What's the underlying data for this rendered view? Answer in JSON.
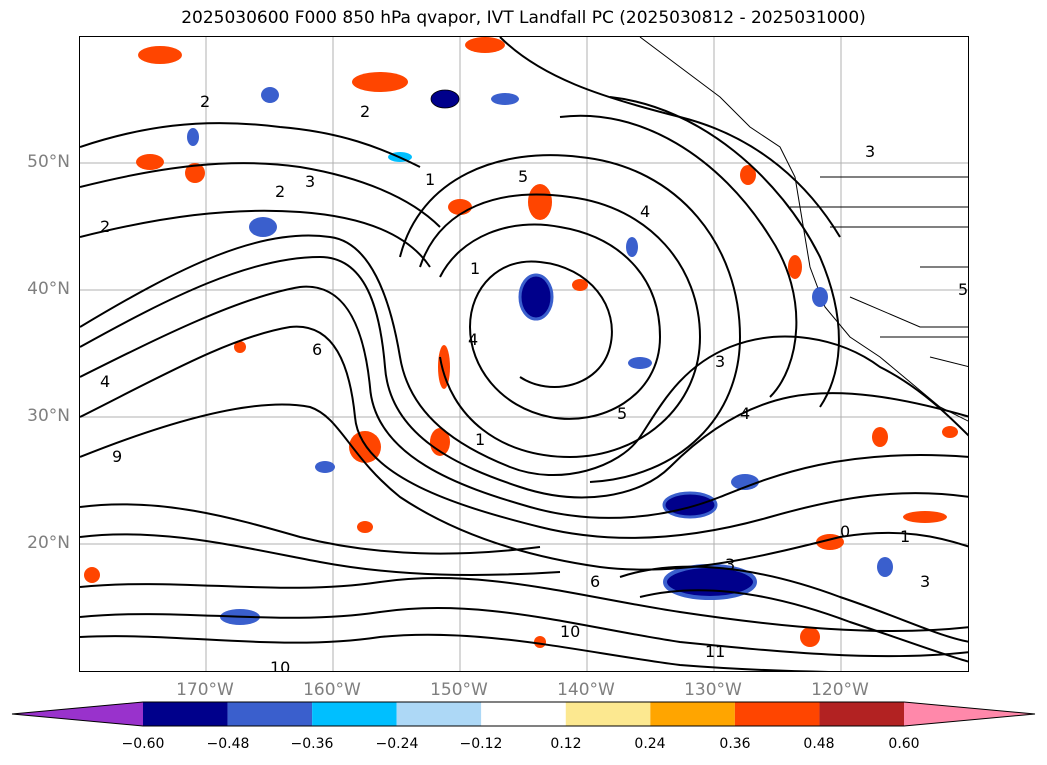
{
  "title": "2025030600 F000 850 hPa qvapor, IVT Landfall PC (2025030812 - 2025031000)",
  "lat_labels": [
    "50°N",
    "40°N",
    "30°N",
    "20°N"
  ],
  "lon_labels": [
    "170°W",
    "160°W",
    "150°W",
    "140°W",
    "130°W",
    "120°W"
  ],
  "colorbar": {
    "ticks": [
      "−0.60",
      "−0.48",
      "−0.36",
      "−0.24",
      "−0.12",
      "0.12",
      "0.24",
      "0.36",
      "0.48",
      "0.60"
    ],
    "colors": [
      "#9932cc",
      "#00008b",
      "#3a5fcd",
      "#00bfff",
      "#add8f6",
      "#ffffff",
      "#fce890",
      "#ffa500",
      "#ff4500",
      "#b22222",
      "#ff88aa"
    ]
  },
  "contour_labels": [
    "2",
    "2",
    "2",
    "3",
    "2",
    "1",
    "5",
    "4",
    "3",
    "1",
    "4",
    "1",
    "6",
    "3",
    "5",
    "9",
    "10",
    "11",
    "10",
    "6",
    "4",
    "1",
    "0",
    "3",
    "4",
    "3",
    "5"
  ]
}
